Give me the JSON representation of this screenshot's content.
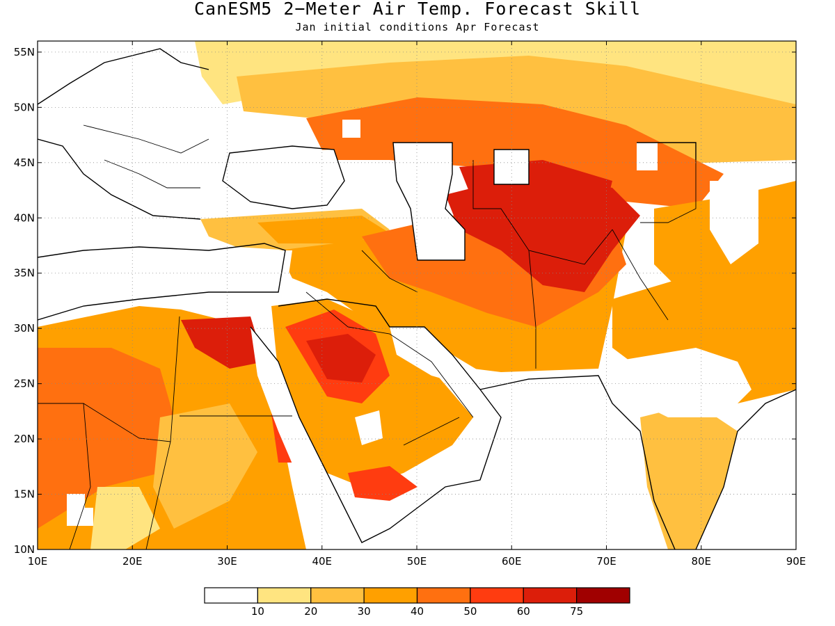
{
  "title": "CanESM5 2−Meter Air Temp. Forecast Skill",
  "subtitle": "Jan initial conditions  Apr Forecast",
  "map": {
    "lon_range": [
      10,
      90
    ],
    "lat_range": [
      10,
      56
    ],
    "lon_ticks": [
      {
        "value": 10,
        "label": "10E"
      },
      {
        "value": 20,
        "label": "20E"
      },
      {
        "value": 30,
        "label": "30E"
      },
      {
        "value": 40,
        "label": "40E"
      },
      {
        "value": 50,
        "label": "50E"
      },
      {
        "value": 60,
        "label": "60E"
      },
      {
        "value": 70,
        "label": "70E"
      },
      {
        "value": 80,
        "label": "80E"
      },
      {
        "value": 90,
        "label": "90E"
      }
    ],
    "lat_ticks": [
      {
        "value": 10,
        "label": "10N"
      },
      {
        "value": 15,
        "label": "15N"
      },
      {
        "value": 20,
        "label": "20N"
      },
      {
        "value": 25,
        "label": "25N"
      },
      {
        "value": 30,
        "label": "30N"
      },
      {
        "value": 35,
        "label": "35N"
      },
      {
        "value": 40,
        "label": "40N"
      },
      {
        "value": 45,
        "label": "45N"
      },
      {
        "value": 50,
        "label": "50N"
      },
      {
        "value": 55,
        "label": "55N"
      }
    ],
    "grid": "dotted"
  },
  "legend": {
    "colors": [
      "#ffffff",
      "#ffe480",
      "#ffc040",
      "#ffa000",
      "#ff7010",
      "#ff3c10",
      "#dc1e0a",
      "#a00000"
    ],
    "labels": [
      "10",
      "20",
      "30",
      "40",
      "50",
      "60",
      "75"
    ]
  },
  "chart_data": {
    "type": "heatmap",
    "title": "CanESM5 2−Meter Air Temp. Forecast Skill",
    "subtitle": "Jan initial conditions  Apr Forecast",
    "xlabel": "",
    "ylabel": "",
    "xlim": [
      10,
      90
    ],
    "ylim": [
      10,
      56
    ],
    "levels": [
      10,
      20,
      30,
      40,
      50,
      60,
      75
    ],
    "grid": true,
    "regions": [
      {
        "name": "",
        "lon": [
          10,
          25
        ],
        "lat": [
          10,
          30
        ],
        "level": 40
      },
      {
        "name": "",
        "lon": [
          28,
          35
        ],
        "lat": [
          25,
          31
        ],
        "level": 60
      },
      {
        "name": "",
        "lon": [
          40,
          48
        ],
        "lat": [
          23,
          30
        ],
        "level": 60
      },
      {
        "name": "",
        "lon": [
          58,
          70
        ],
        "lat": [
          33,
          43
        ],
        "level": 60
      },
      {
        "name": "",
        "lon": [
          48,
          70
        ],
        "lat": [
          42,
          50
        ],
        "level": 50
      },
      {
        "name": "",
        "lon": [
          70,
          90
        ],
        "lat": [
          30,
          45
        ],
        "level": 40
      },
      {
        "name": "",
        "lon": [
          75,
          82
        ],
        "lat": [
          10,
          25
        ],
        "level": 30
      },
      {
        "name": "",
        "lon": [
          12,
          50
        ],
        "lat": [
          47,
          56
        ],
        "level": 20
      },
      {
        "name": "",
        "lon": [
          25,
          52
        ],
        "lat": [
          37,
          42
        ],
        "level": 40
      },
      {
        "name": "",
        "lon": [
          44,
          58
        ],
        "lat": [
          13,
          20
        ],
        "level": 40
      }
    ]
  }
}
